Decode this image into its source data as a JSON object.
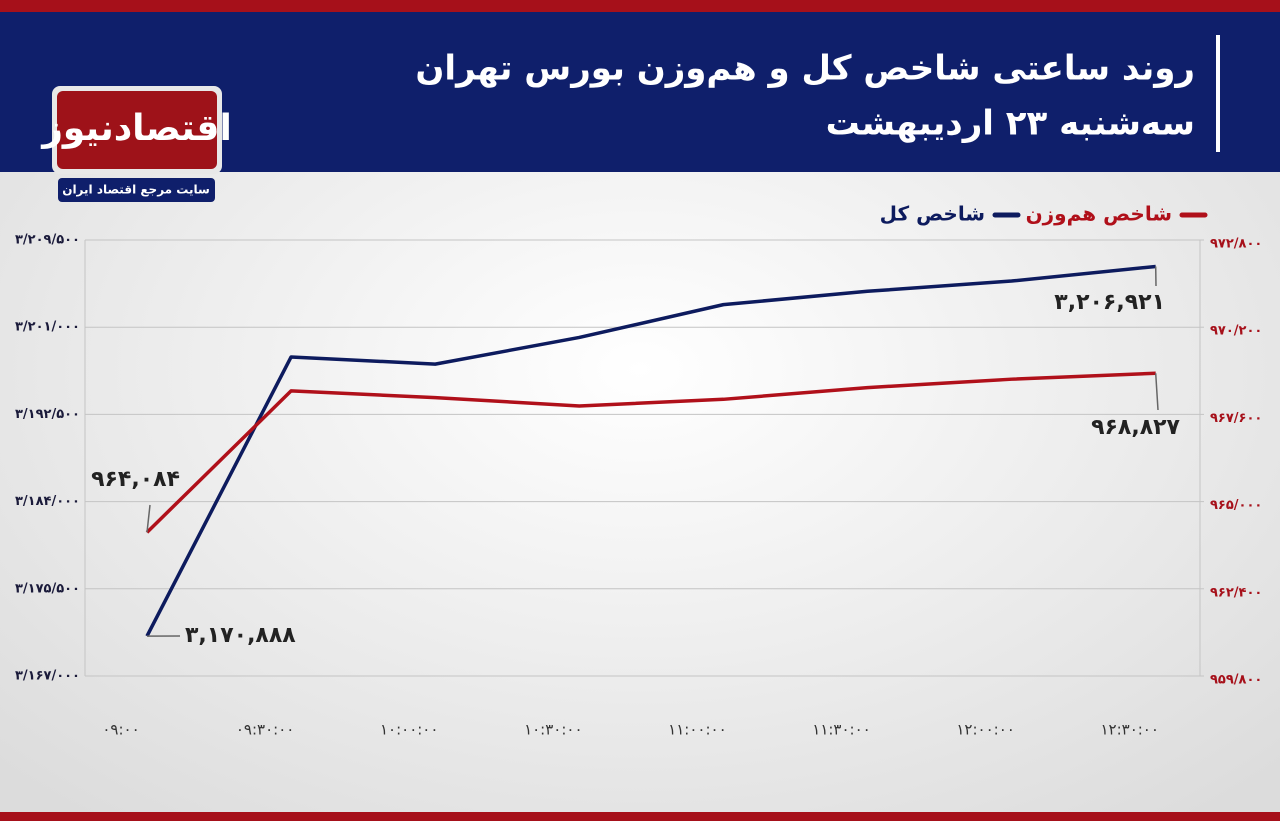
{
  "brand": {
    "name": "اقتصادنیوز",
    "tagline": "سایت مرجع اقتصاد ایران"
  },
  "chart_data": {
    "type": "line",
    "title": "روند ساعتی شاخص کل و هم‌وزن بورس تهران",
    "subtitle": "سه‌شنبه ۲۳ اردیبهشت",
    "categories": [
      "۰۹:۰۰",
      "۰۹:۳۰:۰۰",
      "۱۰:۰۰:۰۰",
      "۱۰:۳۰:۰۰",
      "۱۱:۰۰:۰۰",
      "۱۱:۳۰:۰۰",
      "۱۲:۰۰:۰۰",
      "۱۲:۳۰:۰۰"
    ],
    "series": [
      {
        "name": "شاخص کل",
        "color": "#0d1b5e",
        "values": [
          3170888,
          3198100,
          3197400,
          3200000,
          3203200,
          3204500,
          3205500,
          3206921
        ],
        "value_labels": [
          "۳,۱۷۰,۸۸۸",
          null,
          null,
          null,
          null,
          null,
          null,
          "۳,۲۰۶,۹۲۱"
        ]
      },
      {
        "name": "شاخص هم‌وزن",
        "color": "#b0101a",
        "axis": "y2",
        "values": [
          964084,
          968300,
          968100,
          967850,
          968050,
          968400,
          968650,
          968827
        ],
        "value_labels": [
          "۹۶۴,۰۸۴",
          null,
          null,
          null,
          null,
          null,
          null,
          "۹۶۸,۸۲۷"
        ]
      }
    ],
    "ylim": [
      3167000,
      3209500
    ],
    "yticks": [
      {
        "value": 3167000,
        "label": "۳/۱۶۷/۰۰۰"
      },
      {
        "value": 3175500,
        "label": "۳/۱۷۵/۵۰۰"
      },
      {
        "value": 3184000,
        "label": "۳/۱۸۴/۰۰۰"
      },
      {
        "value": 3192500,
        "label": "۳/۱۹۲/۵۰۰"
      },
      {
        "value": 3201000,
        "label": "۳/۲۰۱/۰۰۰"
      },
      {
        "value": 3209500,
        "label": "۳/۲۰۹/۵۰۰"
      }
    ],
    "y2lim": [
      959800,
      972800
    ],
    "y2ticks": [
      {
        "value": 959800,
        "label": "۹۵۹/۸۰۰"
      },
      {
        "value": 962400,
        "label": "۹۶۲/۴۰۰"
      },
      {
        "value": 965000,
        "label": "۹۶۵/۰۰۰"
      },
      {
        "value": 967600,
        "label": "۹۶۷/۶۰۰"
      },
      {
        "value": 970200,
        "label": "۹۷۰/۲۰۰"
      },
      {
        "value": 972800,
        "label": "۹۷۲/۸۰۰"
      }
    ],
    "grid": true
  }
}
